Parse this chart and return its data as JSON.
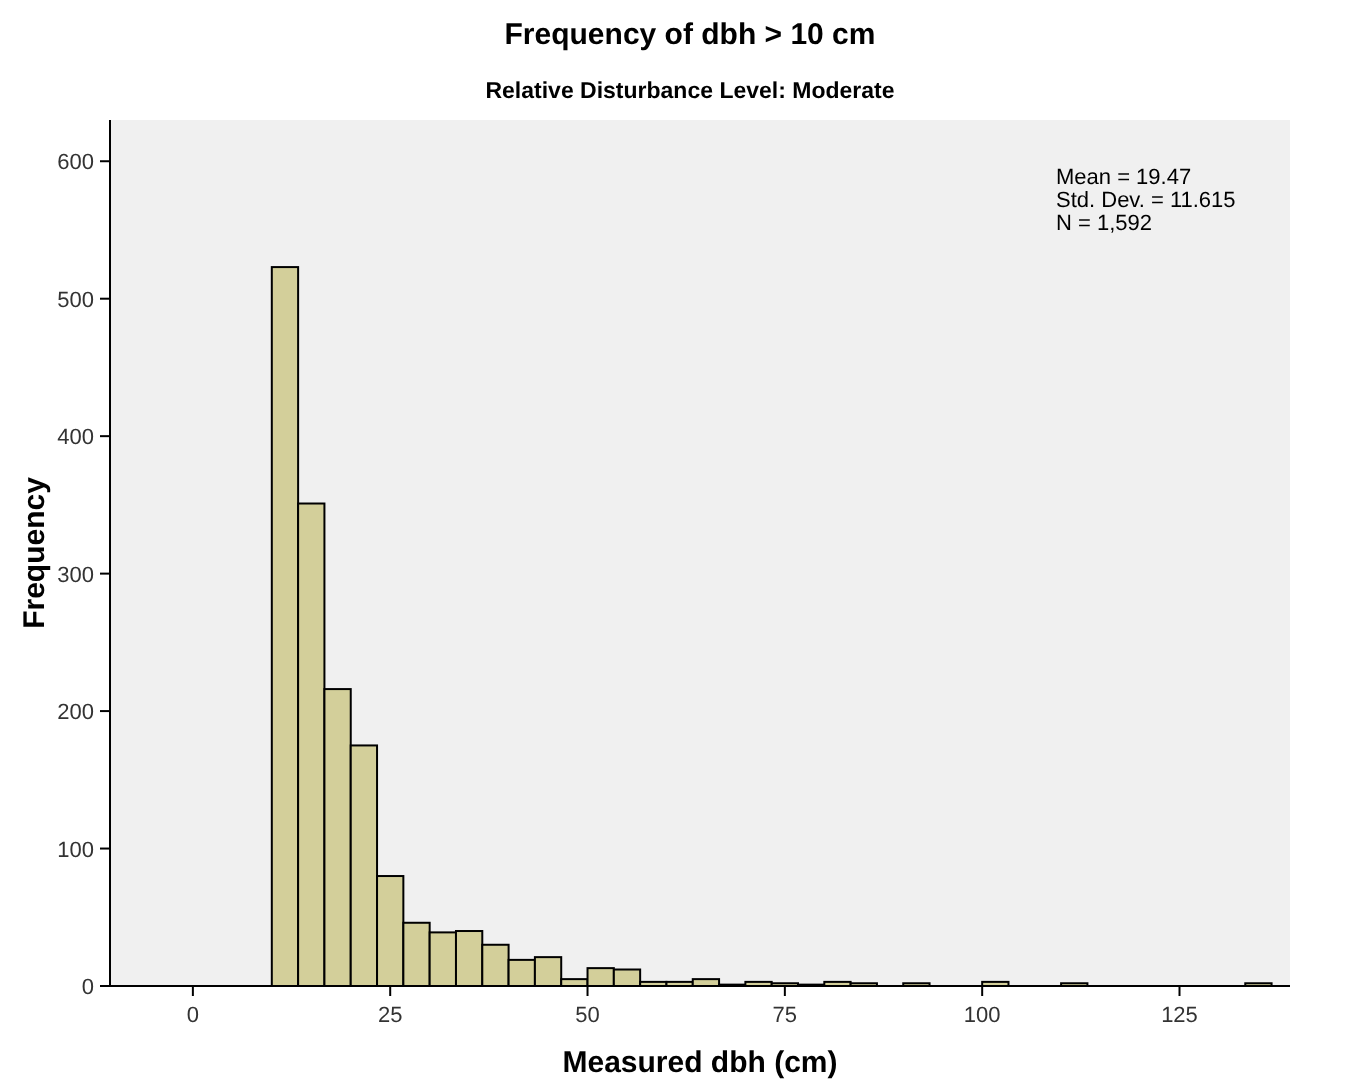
{
  "chart_data": {
    "type": "histogram",
    "title": "Frequency of dbh > 10 cm",
    "subtitle": "Relative Disturbance Level: Moderate",
    "xlabel": "Measured dbh (cm)",
    "ylabel": "Frequency",
    "bins": [
      10,
      13.333,
      16.667,
      20,
      23.333,
      26.667,
      30,
      33.333,
      36.667,
      40,
      43.333,
      46.667,
      50,
      53.333,
      56.667,
      60,
      63.333,
      66.667,
      70,
      73.333,
      76.667,
      80,
      83.333,
      86.667,
      90,
      93.333,
      96.667,
      100,
      103.333,
      106.667,
      110,
      113.333,
      116.667,
      120,
      123.333,
      126.667,
      130,
      133.333,
      136.667
    ],
    "values": [
      523,
      351,
      216,
      175,
      80,
      46,
      39,
      40,
      30,
      19,
      21,
      5,
      13,
      12,
      3,
      3,
      5,
      1,
      3,
      2,
      1,
      3,
      2,
      0,
      2,
      0,
      0,
      3,
      0,
      0,
      2,
      0,
      0,
      0,
      0,
      0,
      0,
      2
    ],
    "color": "#d3cf9a",
    "xlim": [
      -10.5,
      139
    ],
    "xticks": [
      0,
      25,
      50,
      75,
      100,
      125
    ],
    "ylim": [
      0,
      630
    ],
    "yticks": [
      0,
      100,
      200,
      300,
      400,
      500,
      600
    ],
    "grid": false,
    "annotations": [
      "Mean = 19.47",
      "Std. Dev. = 11.615",
      "N = 1,592"
    ]
  }
}
